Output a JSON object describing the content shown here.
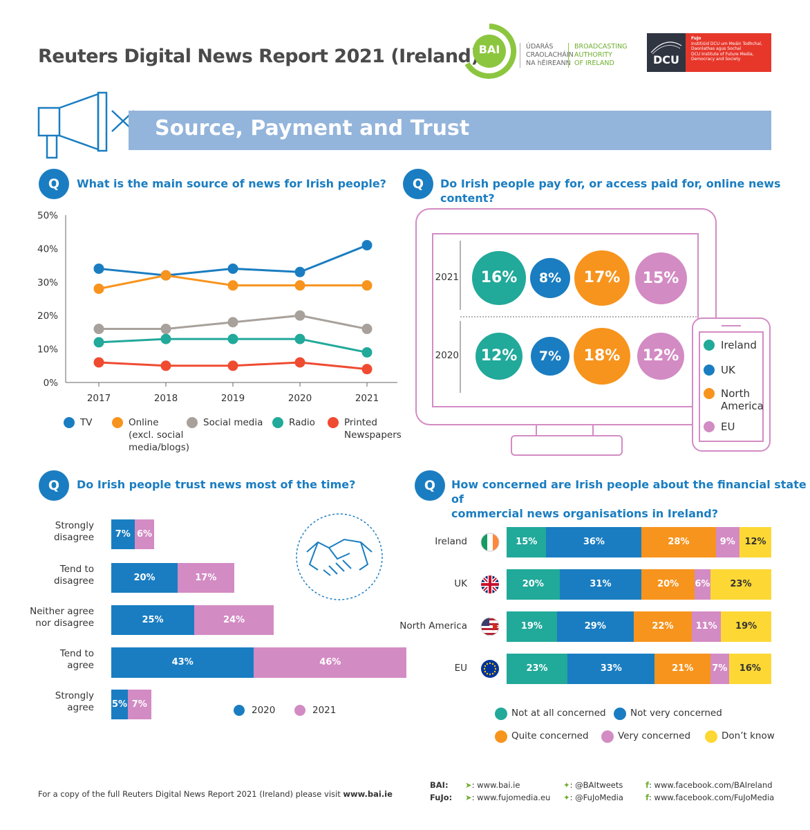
{
  "header": {
    "title": "Reuters Digital News Report 2021 (Ireland)",
    "bai_abbrev": "BAI",
    "bai_irish": [
      "ÚDARÁS",
      "CRAOLACHÁIN",
      "NA hÉIREANN"
    ],
    "bai_english": [
      "BROADCASTING",
      "AUTHORITY",
      "OF IRELAND"
    ],
    "dcu_abbrev": "DCU",
    "fujo_caption": [
      "FuJo",
      "Institiúid DCU um Meáin Todhchaí,",
      "Daonlathas agus Sochaí",
      "DCU Institute of Future Media,",
      "Democracy and Society"
    ]
  },
  "section": {
    "title": "Source, Payment and Trust"
  },
  "q_badge": "Q",
  "questions": {
    "source": "What is the main source of news for Irish people?",
    "pay": "Do Irish people pay for, or access paid for, online news content?",
    "trust": "Do Irish people trust news most of the time?",
    "finance_line1": "How concerned are Irish people about the financial state of",
    "finance_line2": "commercial news organisations in Ireland?"
  },
  "chart_data": [
    {
      "type": "line",
      "title": "What is the main source of news for Irish people?",
      "x": [
        "2017",
        "2018",
        "2019",
        "2020",
        "2021"
      ],
      "ylim": [
        0,
        50
      ],
      "yticks": [
        "0%",
        "10%",
        "20%",
        "30%",
        "40%",
        "50%"
      ],
      "series": [
        {
          "name": "TV",
          "color": "#1a7dc1",
          "values": [
            34,
            32,
            34,
            33,
            41
          ]
        },
        {
          "name": "Online",
          "color": "#f7941d",
          "values": [
            28,
            32,
            29,
            29,
            29
          ]
        },
        {
          "name": "Social media",
          "color": "#a8a19b",
          "values": [
            16,
            16,
            18,
            20,
            16
          ]
        },
        {
          "name": "Radio",
          "color": "#21a99a",
          "values": [
            12,
            13,
            13,
            13,
            9
          ]
        },
        {
          "name": "Printed Newspapers",
          "color": "#ef4b31",
          "values": [
            6,
            5,
            5,
            6,
            4
          ]
        }
      ],
      "legend": [
        {
          "lines": [
            "TV"
          ],
          "color": "#1a7dc1"
        },
        {
          "lines": [
            "Online",
            "(excl. social",
            "media/blogs)"
          ],
          "color": "#f7941d"
        },
        {
          "lines": [
            "Social media"
          ],
          "color": "#a8a19b"
        },
        {
          "lines": [
            "Radio"
          ],
          "color": "#21a99a"
        },
        {
          "lines": [
            "Printed",
            "Newspapers"
          ],
          "color": "#ef4b31"
        }
      ]
    },
    {
      "type": "table",
      "title": "Do Irish people pay for, or access paid for, online news content?",
      "rows": [
        {
          "year": "2021",
          "values": [
            "16%",
            "8%",
            "17%",
            "15%"
          ],
          "numeric": [
            16,
            8,
            17,
            15
          ]
        },
        {
          "year": "2020",
          "values": [
            "12%",
            "7%",
            "18%",
            "12%"
          ],
          "numeric": [
            12,
            7,
            18,
            12
          ]
        }
      ],
      "legend": [
        {
          "label": "Ireland",
          "color": "#21a99a"
        },
        {
          "label": "UK",
          "color": "#1a7dc1"
        },
        {
          "label": "North America",
          "color": "#f7941d"
        },
        {
          "label": "EU",
          "color": "#d38bc4"
        }
      ]
    },
    {
      "type": "bar",
      "title": "Do Irish people trust news most of the time?",
      "categories": [
        "Strongly disagree",
        "Tend to disagree",
        "Neither agree nor disagree",
        "Tend to agree",
        "Strongly agree"
      ],
      "category_lines": [
        [
          "Strongly",
          "disagree"
        ],
        [
          "Tend to",
          "disagree"
        ],
        [
          "Neither agree",
          "nor disagree"
        ],
        [
          "Tend to",
          "agree"
        ],
        [
          "Strongly",
          "agree"
        ]
      ],
      "series": [
        {
          "name": "2020",
          "color": "#1a7dc1",
          "values": [
            7,
            20,
            25,
            43,
            5
          ],
          "labels": [
            "7%",
            "20%",
            "25%",
            "43%",
            "5%"
          ]
        },
        {
          "name": "2021",
          "color": "#d38bc4",
          "values": [
            6,
            17,
            24,
            46,
            7
          ],
          "labels": [
            "6%",
            "17%",
            "24%",
            "46%",
            "7%"
          ]
        }
      ],
      "stacked": true
    },
    {
      "type": "bar",
      "title": "How concerned are Irish people about the financial state of commercial news organisations in Ireland?",
      "categories": [
        "Ireland",
        "UK",
        "North America",
        "EU"
      ],
      "series": [
        {
          "name": "Not at all concerned",
          "color": "#21a99a",
          "values": [
            15,
            20,
            19,
            23
          ]
        },
        {
          "name": "Not very concerned",
          "color": "#1a7dc1",
          "values": [
            36,
            31,
            29,
            33
          ]
        },
        {
          "name": "Quite concerned",
          "color": "#f7941d",
          "values": [
            28,
            20,
            22,
            21
          ]
        },
        {
          "name": "Very concerned",
          "color": "#d38bc4",
          "values": [
            9,
            6,
            11,
            7
          ]
        },
        {
          "name": "Don’t know",
          "color": "#fdd835",
          "values": [
            12,
            23,
            19,
            16
          ]
        }
      ],
      "stacked": true
    }
  ],
  "footer": {
    "copy_text": "For a copy of the full Reuters Digital News Report 2021 (Ireland) please visit ",
    "copy_link": "www.bai.ie",
    "bai_label": "BAI:",
    "fujo_label": "FuJo:",
    "bai_web": ": www.bai.ie",
    "fujo_web": ": www.fujomedia.eu",
    "bai_twitter": ": @BAItweets",
    "fujo_twitter": ": @FuJoMedia",
    "bai_facebook": ": www.facebook.com/BAIreland",
    "fujo_facebook": ": www.facebook.com/FuJoMedia"
  }
}
